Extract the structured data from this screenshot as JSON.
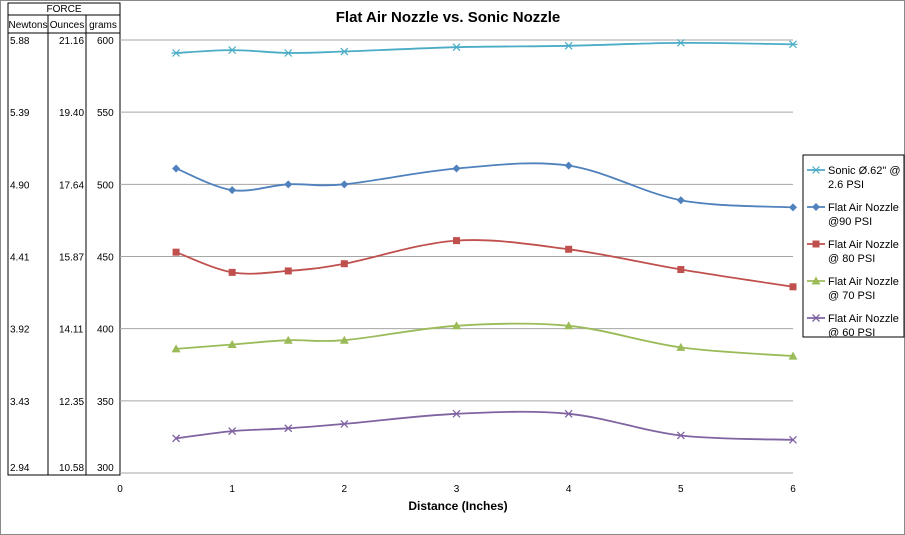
{
  "chart_data": {
    "type": "line",
    "title": "Flat Air Nozzle vs. Sonic Nozzle",
    "xlabel": "Distance (Inches)",
    "ylabel": "FORCE",
    "x_ticks": [
      0,
      1,
      2,
      3,
      4,
      5,
      6
    ],
    "xlim": [
      0,
      6
    ],
    "ylim": [
      300,
      600
    ],
    "grid": true,
    "legend_position": "right",
    "force_table": {
      "header": "FORCE",
      "columns": [
        "Newtons",
        "Ounces",
        "grams"
      ],
      "rows": [
        [
          "5.88",
          "21.16",
          "600"
        ],
        [
          "5.39",
          "19.40",
          "550"
        ],
        [
          "4.90",
          "17.64",
          "500"
        ],
        [
          "4.41",
          "15.87",
          "450"
        ],
        [
          "3.92",
          "14.11",
          "400"
        ],
        [
          "3.43",
          "12.35",
          "350"
        ],
        [
          "2.94",
          "10.58",
          "300"
        ]
      ]
    },
    "x": [
      0.5,
      1,
      1.5,
      2,
      3,
      4,
      5,
      6
    ],
    "series": [
      {
        "name": "Sonic Ø.62\" @ 2.6 PSI",
        "legend_lines": [
          "Sonic Ø.62\" @",
          "2.6 PSI"
        ],
        "color": "#4bacc6",
        "marker": "star",
        "values": [
          591,
          593,
          591,
          592,
          595,
          596,
          598,
          597
        ]
      },
      {
        "name": "Flat Air Nozzle @90 PSI",
        "legend_lines": [
          "Flat Air Nozzle",
          "@90 PSI"
        ],
        "color": "#4f81bd",
        "marker": "diamond",
        "values": [
          511,
          496,
          500,
          500,
          511,
          513,
          489,
          484
        ]
      },
      {
        "name": "Flat Air Nozzle @ 80 PSI",
        "legend_lines": [
          "Flat Air Nozzle",
          "@ 80 PSI"
        ],
        "color": "#c0504d",
        "marker": "square",
        "values": [
          453,
          439,
          440,
          445,
          461,
          455,
          441,
          429
        ]
      },
      {
        "name": "Flat Air Nozzle @ 70 PSI",
        "legend_lines": [
          "Flat Air Nozzle",
          "@ 70 PSI"
        ],
        "color": "#9bbb59",
        "marker": "triangle",
        "values": [
          386,
          389,
          392,
          392,
          402,
          402,
          387,
          381
        ]
      },
      {
        "name": "Flat Air Nozzle @ 60 PSI",
        "legend_lines": [
          "Flat Air Nozzle",
          "@ 60 PSI"
        ],
        "color": "#8064a2",
        "marker": "x",
        "values": [
          324,
          329,
          331,
          334,
          341,
          341,
          326,
          323
        ]
      }
    ]
  }
}
